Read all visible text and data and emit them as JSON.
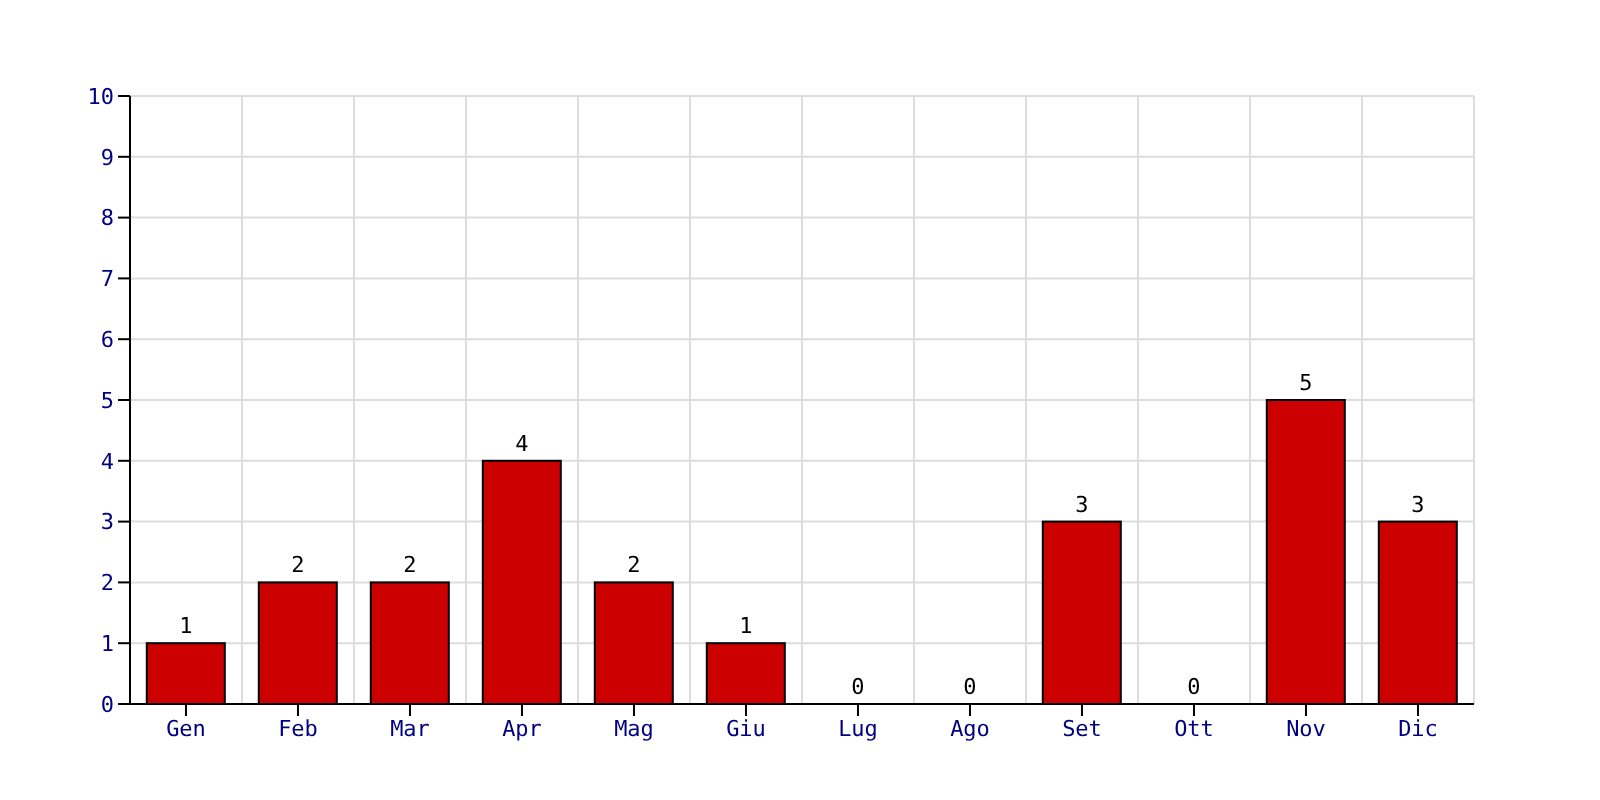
{
  "chart_data": {
    "type": "bar",
    "categories": [
      "Gen",
      "Feb",
      "Mar",
      "Apr",
      "Mag",
      "Giu",
      "Lug",
      "Ago",
      "Set",
      "Ott",
      "Nov",
      "Dic"
    ],
    "values": [
      1,
      2,
      2,
      4,
      2,
      1,
      0,
      0,
      3,
      0,
      5,
      3
    ],
    "color": "#cc0000",
    "ylim": [
      0,
      10
    ],
    "yticks": [
      0,
      1,
      2,
      3,
      4,
      5,
      6,
      7,
      8,
      9,
      10
    ],
    "grid": true,
    "data_labels": true
  }
}
